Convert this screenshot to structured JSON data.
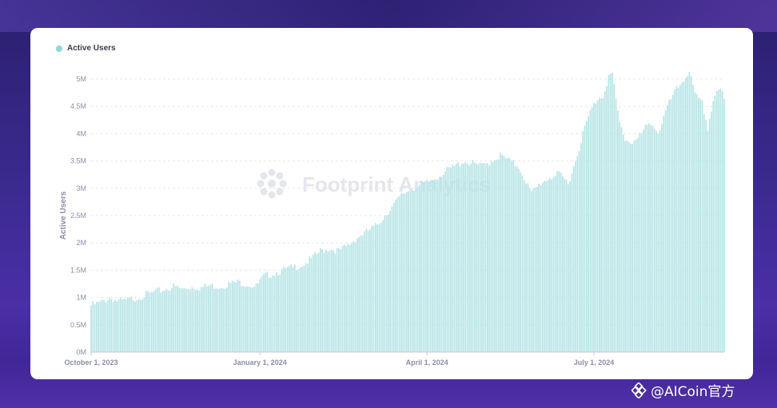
{
  "colors": {
    "series": "#b7e4e6",
    "legend_dot": "#8fd6d8",
    "grid": "#e6e7ee",
    "axis_text": "#8a8fa6",
    "watermark": "#e3e4ea"
  },
  "watermark": {
    "text": "Footprint Analytics",
    "icon": "footprint-logo-icon"
  },
  "corner_watermark": {
    "text": "@AICoin官方",
    "icon": "aicoin-logo-icon"
  },
  "chart_data": {
    "type": "bar",
    "ylabel": "Active Users",
    "ylim": [
      0,
      5000000
    ],
    "yticks": [
      0,
      500000,
      1000000,
      1500000,
      2000000,
      2500000,
      3000000,
      3500000,
      4000000,
      4500000,
      5000000
    ],
    "ytick_labels": [
      "0M",
      "0.5M",
      "1M",
      "1.5M",
      "2M",
      "2.5M",
      "3M",
      "3.5M",
      "4M",
      "4.5M",
      "5M"
    ],
    "xtick_labels": [
      "October 1, 2023",
      "January 1, 2024",
      "April 1, 2024",
      "July 1, 2024"
    ],
    "xtick_days": [
      0,
      92,
      183,
      274
    ],
    "grid": true,
    "legend_placement": "top-left",
    "series": [
      {
        "name": "Active Users",
        "start": "2023-10-01",
        "interval": "1 day",
        "anchors": [
          [
            0,
            0.85
          ],
          [
            5,
            0.9
          ],
          [
            10,
            1.0
          ],
          [
            15,
            0.93
          ],
          [
            20,
            0.95
          ],
          [
            25,
            1.0
          ],
          [
            30,
            1.05
          ],
          [
            35,
            1.1
          ],
          [
            40,
            1.15
          ],
          [
            45,
            1.2
          ],
          [
            50,
            1.15
          ],
          [
            55,
            1.2
          ],
          [
            60,
            1.18
          ],
          [
            65,
            1.22
          ],
          [
            70,
            1.2
          ],
          [
            75,
            1.25
          ],
          [
            80,
            1.28
          ],
          [
            85,
            1.25
          ],
          [
            90,
            1.2
          ],
          [
            92,
            1.3
          ],
          [
            95,
            1.4
          ],
          [
            100,
            1.45
          ],
          [
            105,
            1.5
          ],
          [
            110,
            1.55
          ],
          [
            115,
            1.6
          ],
          [
            120,
            1.7
          ],
          [
            125,
            1.85
          ],
          [
            130,
            1.9
          ],
          [
            135,
            1.85
          ],
          [
            140,
            1.95
          ],
          [
            145,
            2.1
          ],
          [
            150,
            2.2
          ],
          [
            155,
            2.3
          ],
          [
            160,
            2.5
          ],
          [
            165,
            2.7
          ],
          [
            170,
            2.9
          ],
          [
            175,
            3.0
          ],
          [
            180,
            3.05
          ],
          [
            183,
            3.1
          ],
          [
            188,
            3.2
          ],
          [
            193,
            3.3
          ],
          [
            198,
            3.4
          ],
          [
            203,
            3.5
          ],
          [
            208,
            3.45
          ],
          [
            213,
            3.4
          ],
          [
            218,
            3.5
          ],
          [
            223,
            3.6
          ],
          [
            228,
            3.5
          ],
          [
            233,
            3.4
          ],
          [
            236,
            3.2
          ],
          [
            240,
            2.9
          ],
          [
            245,
            3.1
          ],
          [
            250,
            3.2
          ],
          [
            255,
            3.25
          ],
          [
            260,
            3.1
          ],
          [
            264,
            3.5
          ],
          [
            268,
            4.0
          ],
          [
            272,
            4.4
          ],
          [
            276,
            4.65
          ],
          [
            279,
            4.7
          ],
          [
            282,
            5.05
          ],
          [
            284,
            5.1
          ],
          [
            286,
            4.6
          ],
          [
            288,
            4.2
          ],
          [
            291,
            3.9
          ],
          [
            294,
            3.85
          ],
          [
            298,
            3.9
          ],
          [
            302,
            4.1
          ],
          [
            306,
            4.2
          ],
          [
            309,
            4.0
          ],
          [
            313,
            4.4
          ],
          [
            317,
            4.7
          ],
          [
            321,
            4.9
          ],
          [
            324,
            5.05
          ],
          [
            326,
            5.15
          ],
          [
            329,
            4.7
          ],
          [
            333,
            4.55
          ],
          [
            336,
            4.1
          ],
          [
            339,
            4.6
          ],
          [
            341,
            4.8
          ],
          [
            344,
            4.75
          ],
          [
            345,
            4.6
          ]
        ],
        "units": "millions"
      }
    ]
  }
}
